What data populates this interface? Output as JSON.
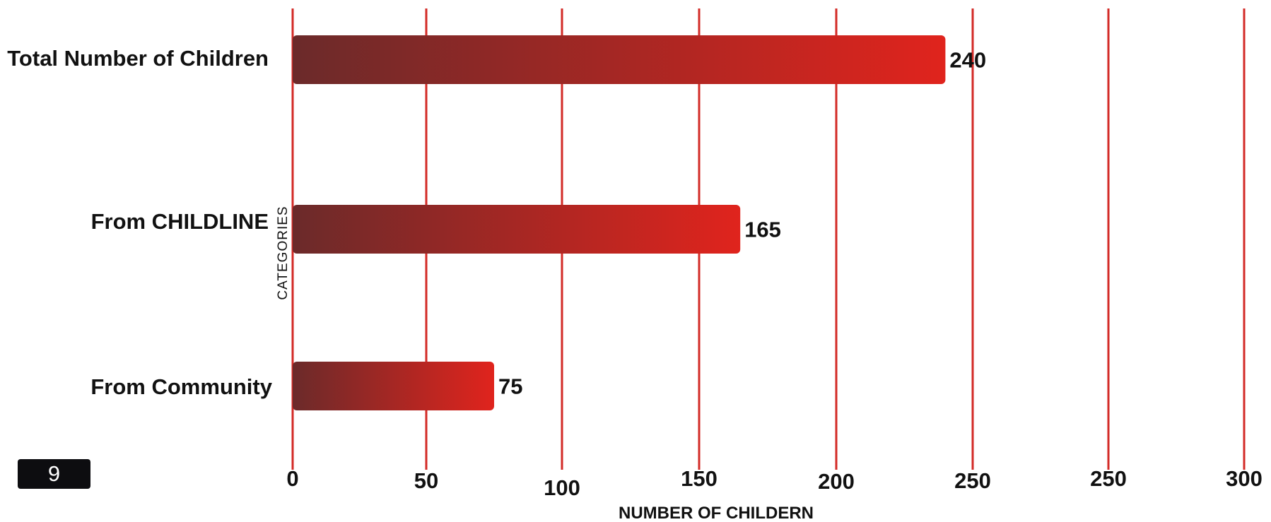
{
  "chart_data": {
    "type": "bar",
    "orientation": "horizontal",
    "categories": [
      "Total Number of Children",
      "From CHILDLINE",
      "From Community"
    ],
    "values": [
      240,
      165,
      75
    ],
    "data_labels": [
      "240",
      "165",
      "75"
    ],
    "xlabel": "NUMBER OF CHILDERN",
    "ylabel": "CATEGORIES",
    "x_ticks": [
      "0",
      "50",
      "100",
      "150",
      "200",
      "250",
      "250",
      "300"
    ],
    "xlim": [
      0,
      300
    ],
    "grid": true,
    "colors": {
      "grid": "#d32b27",
      "bar_start": "#6b2a2a",
      "bar_end": "#e0241d"
    }
  },
  "page_number": "9"
}
